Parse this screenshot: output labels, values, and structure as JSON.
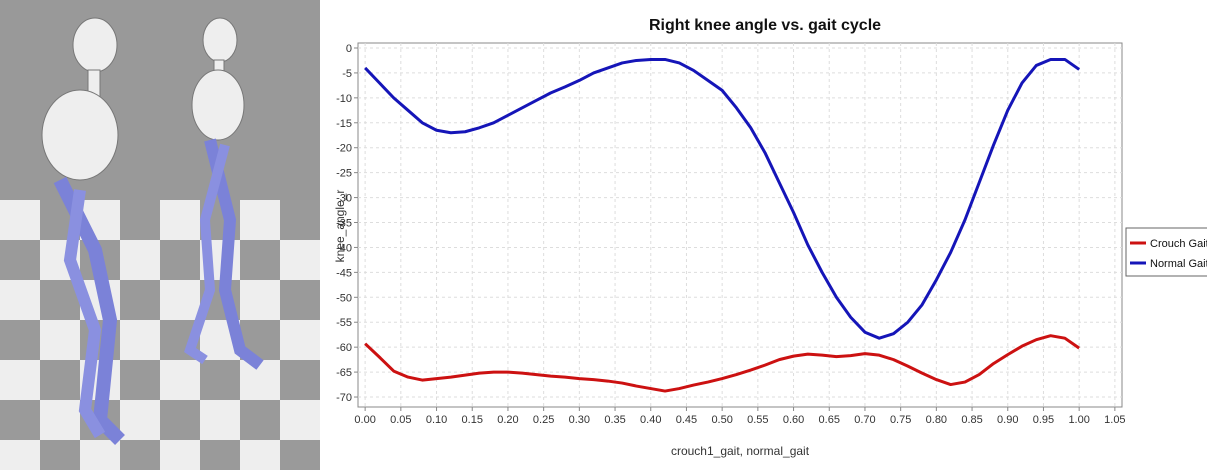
{
  "chart_data": {
    "type": "line",
    "title": "Right knee angle vs. gait cycle",
    "x_label": "crouch1_gait, normal_gait",
    "y_label": "knee_angle_r",
    "x": [
      0,
      0.02,
      0.04,
      0.06,
      0.08,
      0.1,
      0.12,
      0.14,
      0.16,
      0.18,
      0.2,
      0.22,
      0.24,
      0.26,
      0.28,
      0.3,
      0.32,
      0.34,
      0.36,
      0.38,
      0.4,
      0.42,
      0.44,
      0.46,
      0.48,
      0.5,
      0.52,
      0.54,
      0.56,
      0.58,
      0.6,
      0.62,
      0.64,
      0.66,
      0.68,
      0.7,
      0.72,
      0.74,
      0.76,
      0.78,
      0.8,
      0.82,
      0.84,
      0.86,
      0.88,
      0.9,
      0.92,
      0.94,
      0.96,
      0.98,
      1.0
    ],
    "series": [
      {
        "name": "Crouch Gait",
        "color": "#cc1111",
        "values": [
          -59.3,
          -62,
          -64.8,
          -66,
          -66.6,
          -66.3,
          -66,
          -65.6,
          -65.2,
          -65,
          -65,
          -65.2,
          -65.5,
          -65.8,
          -66,
          -66.3,
          -66.5,
          -66.8,
          -67.2,
          -67.8,
          -68.3,
          -68.8,
          -68.3,
          -67.6,
          -67,
          -66.3,
          -65.5,
          -64.6,
          -63.6,
          -62.5,
          -61.8,
          -61.4,
          -61.6,
          -61.9,
          -61.7,
          -61.3,
          -61.6,
          -62.5,
          -63.8,
          -65.2,
          -66.5,
          -67.5,
          -67,
          -65.5,
          -63.3,
          -61.5,
          -59.8,
          -58.5,
          -57.7,
          -58.2,
          -60.2
        ]
      },
      {
        "name": "Normal Gait",
        "color": "#1515b8",
        "values": [
          -4,
          -7,
          -10,
          -12.5,
          -15,
          -16.5,
          -17,
          -16.8,
          -16,
          -15,
          -13.5,
          -12,
          -10.5,
          -9,
          -7.8,
          -6.5,
          -5,
          -4,
          -3,
          -2.5,
          -2.3,
          -2.3,
          -3,
          -4.5,
          -6.5,
          -8.5,
          -12,
          -16,
          -21,
          -27,
          -33,
          -39.5,
          -45,
          -50,
          -54,
          -57,
          -58.2,
          -57.3,
          -55,
          -51.5,
          -46.5,
          -41,
          -34.5,
          -27,
          -19.5,
          -12.5,
          -7,
          -3.5,
          -2.3,
          -2.3,
          -4.3
        ]
      }
    ],
    "xlim": [
      -0.01,
      1.06
    ],
    "ylim": [
      -72,
      1
    ],
    "xticks": [
      {
        "value": 0,
        "label": "0.00"
      },
      {
        "value": 0.05,
        "label": "0.05"
      },
      {
        "value": 0.1,
        "label": "0.10"
      },
      {
        "value": 0.15,
        "label": "0.15"
      },
      {
        "value": 0.2,
        "label": "0.20"
      },
      {
        "value": 0.25,
        "label": "0.25"
      },
      {
        "value": 0.3,
        "label": "0.30"
      },
      {
        "value": 0.35,
        "label": "0.35"
      },
      {
        "value": 0.4,
        "label": "0.40"
      },
      {
        "value": 0.45,
        "label": "0.45"
      },
      {
        "value": 0.5,
        "label": "0.50"
      },
      {
        "value": 0.55,
        "label": "0.55"
      },
      {
        "value": 0.6,
        "label": "0.60"
      },
      {
        "value": 0.65,
        "label": "0.65"
      },
      {
        "value": 0.7,
        "label": "0.70"
      },
      {
        "value": 0.75,
        "label": "0.75"
      },
      {
        "value": 0.8,
        "label": "0.80"
      },
      {
        "value": 0.85,
        "label": "0.85"
      },
      {
        "value": 0.9,
        "label": "0.90"
      },
      {
        "value": 0.95,
        "label": "0.95"
      },
      {
        "value": 1,
        "label": "1.00"
      },
      {
        "value": 1.05,
        "label": "1.05"
      }
    ],
    "yticks": [
      0,
      -5,
      -10,
      -15,
      -20,
      -25,
      -30,
      -35,
      -40,
      -45,
      -50,
      -55,
      -60,
      -65,
      -70
    ],
    "grid": true,
    "legend": "right"
  }
}
